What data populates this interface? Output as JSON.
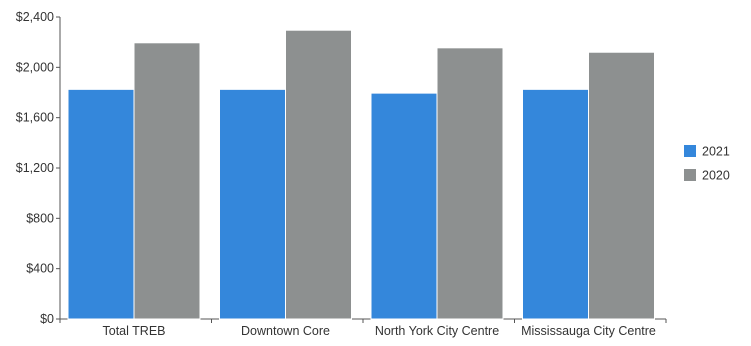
{
  "chart_data": {
    "type": "bar",
    "title": "",
    "xlabel": "",
    "ylabel": "",
    "categories": [
      "Total TREB",
      "Downtown Core",
      "North York City Centre",
      "Mississauga City Centre"
    ],
    "series": [
      {
        "name": "2021",
        "color": "#3487db",
        "values": [
          1825,
          1825,
          1795,
          1825
        ]
      },
      {
        "name": "2020",
        "color": "#8d9090",
        "values": [
          2195,
          2295,
          2155,
          2120
        ]
      }
    ],
    "ylim": [
      0,
      2400
    ],
    "yticks": [
      0,
      400,
      800,
      1200,
      1600,
      2000,
      2400
    ],
    "ytick_labels": [
      "$0",
      "$400",
      "$800",
      "$1,200",
      "$1,600",
      "$2,000",
      "$2,400"
    ],
    "grid": false,
    "legend_position": "right"
  }
}
